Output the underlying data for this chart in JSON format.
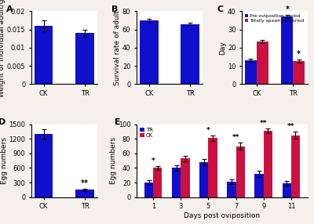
{
  "A": {
    "categories": [
      "CK",
      "TR"
    ],
    "values": [
      0.016,
      0.014
    ],
    "errors": [
      0.0015,
      0.001
    ],
    "ylabel": "Weight of individual adult/g",
    "ylim": [
      0,
      0.02
    ],
    "yticks": [
      0,
      0.005,
      0.01,
      0.015,
      0.02
    ],
    "ytick_labels": [
      "0",
      "0.005",
      "0.01",
      "0.015",
      "0.02"
    ],
    "label": "A"
  },
  "B": {
    "categories": [
      "CK",
      "TR"
    ],
    "values": [
      70,
      66
    ],
    "errors": [
      1.5,
      1.5
    ],
    "ylabel": "Survival rate of adult",
    "ylim": [
      0,
      80
    ],
    "yticks": [
      0,
      20,
      40,
      60,
      80
    ],
    "ytick_labels": [
      "0",
      "20",
      "40",
      "60",
      "80"
    ],
    "label": "B"
  },
  "C": {
    "categories": [
      "CK",
      "TR"
    ],
    "blue_values": [
      13,
      37
    ],
    "blue_errors": [
      0.8,
      0.8
    ],
    "red_values": [
      23.5,
      12.5
    ],
    "red_errors": [
      0.8,
      0.8
    ],
    "ylabel": "Day",
    "ylim": [
      0,
      40
    ],
    "yticks": [
      0,
      10,
      20,
      30,
      40
    ],
    "ytick_labels": [
      "0",
      "10",
      "20",
      "30",
      "40"
    ],
    "legend_blue": "Pre-oviposition period",
    "legend_red": "Totally spawning period",
    "label": "C",
    "sig_blue_tr": "*",
    "sig_red_tr": "*"
  },
  "D": {
    "categories": [
      "CK",
      "TR"
    ],
    "values": [
      1300,
      150
    ],
    "errors": [
      100,
      20
    ],
    "ylabel": "Egg numbers",
    "ylim": [
      0,
      1500
    ],
    "yticks": [
      0,
      300,
      600,
      900,
      1200,
      1500
    ],
    "ytick_labels": [
      "0",
      "300",
      "600",
      "900",
      "1200",
      "1500"
    ],
    "label": "D",
    "sig_tr": "**"
  },
  "E": {
    "days": [
      1,
      3,
      5,
      7,
      9,
      11
    ],
    "TR_values": [
      20,
      40,
      48,
      21,
      32,
      19
    ],
    "TR_errors": [
      3,
      4,
      4,
      3,
      4,
      3
    ],
    "CK_values": [
      40,
      53,
      81,
      70,
      91,
      85
    ],
    "CK_errors": [
      3,
      4,
      4,
      5,
      3,
      5
    ],
    "ylabel": "Egg numbers",
    "xlabel": "Days post oviposition",
    "ylim": [
      0,
      100
    ],
    "yticks": [
      0,
      20,
      40,
      60,
      80,
      100
    ],
    "ytick_labels": [
      "0",
      "20",
      "40",
      "60",
      "80",
      "100"
    ],
    "label": "E",
    "legend_TR": "TR",
    "legend_CK": "CK",
    "sig": {
      "1": "*",
      "3": "",
      "5": "*",
      "7": "**",
      "9": "**",
      "11": "**"
    }
  },
  "bar_color_blue": "#1010CC",
  "bar_color_red": "#CC1040",
  "background_color": "#ffffff",
  "fig_background": "#f5f0eb",
  "label_fontsize": 8,
  "tick_fontsize": 6,
  "axis_label_fontsize": 6.5
}
